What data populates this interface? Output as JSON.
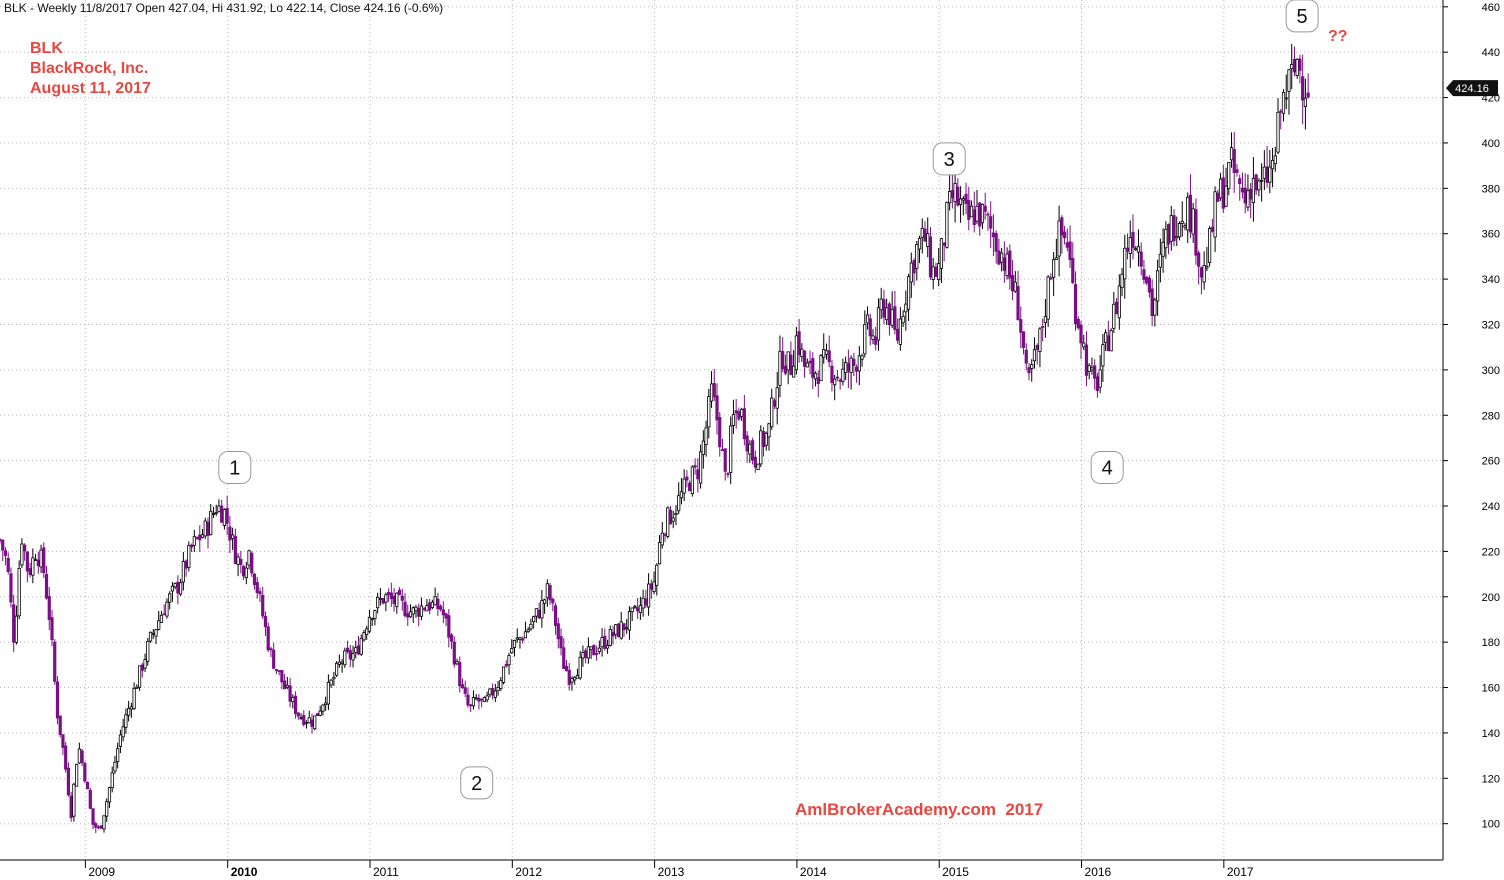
{
  "header": {
    "text": "BLK - Weekly 11/8/2017 Open 427.04, Hi 431.92, Lo 422.14, Close 424.16 (-0.6%)"
  },
  "title": {
    "ticker": "BLK",
    "company": "BlackRock, Inc.",
    "date": "August 11, 2017"
  },
  "watermark": "AmlBrokerAcademy.com  2017",
  "question_label": "??",
  "last_price_label": "424.16",
  "colors": {
    "up": "#000000",
    "down": "#7b0f86",
    "grid": "#b8b8b8",
    "accent": "#e8473f"
  },
  "chart_data": {
    "type": "candlestick",
    "ylim": [
      84,
      463
    ],
    "y_ticks": [
      100,
      120,
      140,
      160,
      180,
      200,
      220,
      240,
      260,
      280,
      300,
      320,
      340,
      360,
      380,
      400,
      420,
      440,
      460
    ],
    "x_ticks": [
      {
        "label": "2009",
        "x": 2009.0
      },
      {
        "label": "2010",
        "x": 2010.0
      },
      {
        "label": "2011",
        "x": 2011.0
      },
      {
        "label": "2012",
        "x": 2012.0
      },
      {
        "label": "2013",
        "x": 2013.0
      },
      {
        "label": "2014",
        "x": 2014.0
      },
      {
        "label": "2015",
        "x": 2015.0
      },
      {
        "label": "2016",
        "x": 2016.0
      },
      {
        "label": "2017",
        "x": 2017.0
      }
    ],
    "x_range": [
      2008.4,
      2018.54
    ],
    "close_path": [
      [
        2008.4,
        225
      ],
      [
        2008.45,
        215
      ],
      [
        2008.5,
        180
      ],
      [
        2008.55,
        228
      ],
      [
        2008.6,
        210
      ],
      [
        2008.65,
        220
      ],
      [
        2008.7,
        215
      ],
      [
        2008.75,
        190
      ],
      [
        2008.8,
        150
      ],
      [
        2008.85,
        130
      ],
      [
        2008.9,
        105
      ],
      [
        2008.95,
        135
      ],
      [
        2009.0,
        120
      ],
      [
        2009.05,
        100
      ],
      [
        2009.1,
        97
      ],
      [
        2009.15,
        110
      ],
      [
        2009.2,
        125
      ],
      [
        2009.25,
        140
      ],
      [
        2009.35,
        160
      ],
      [
        2009.45,
        180
      ],
      [
        2009.55,
        195
      ],
      [
        2009.65,
        205
      ],
      [
        2009.75,
        222
      ],
      [
        2009.85,
        230
      ],
      [
        2009.92,
        240
      ],
      [
        2009.98,
        237
      ],
      [
        2010.05,
        220
      ],
      [
        2010.1,
        212
      ],
      [
        2010.15,
        220
      ],
      [
        2010.22,
        200
      ],
      [
        2010.3,
        175
      ],
      [
        2010.4,
        160
      ],
      [
        2010.5,
        148
      ],
      [
        2010.6,
        145
      ],
      [
        2010.7,
        158
      ],
      [
        2010.8,
        172
      ],
      [
        2010.9,
        175
      ],
      [
        2011.0,
        193
      ],
      [
        2011.1,
        200
      ],
      [
        2011.2,
        197
      ],
      [
        2011.3,
        193
      ],
      [
        2011.4,
        197
      ],
      [
        2011.5,
        195
      ],
      [
        2011.55,
        185
      ],
      [
        2011.6,
        172
      ],
      [
        2011.65,
        158
      ],
      [
        2011.7,
        150
      ],
      [
        2011.75,
        155
      ],
      [
        2011.8,
        152
      ],
      [
        2011.9,
        162
      ],
      [
        2012.0,
        178
      ],
      [
        2012.1,
        185
      ],
      [
        2012.2,
        195
      ],
      [
        2012.25,
        203
      ],
      [
        2012.3,
        190
      ],
      [
        2012.35,
        172
      ],
      [
        2012.4,
        165
      ],
      [
        2012.5,
        172
      ],
      [
        2012.6,
        178
      ],
      [
        2012.7,
        183
      ],
      [
        2012.8,
        188
      ],
      [
        2012.9,
        195
      ],
      [
        2013.0,
        207
      ],
      [
        2013.05,
        230
      ],
      [
        2013.15,
        240
      ],
      [
        2013.25,
        252
      ],
      [
        2013.3,
        255
      ],
      [
        2013.35,
        270
      ],
      [
        2013.4,
        290
      ],
      [
        2013.45,
        275
      ],
      [
        2013.5,
        250
      ],
      [
        2013.55,
        278
      ],
      [
        2013.6,
        283
      ],
      [
        2013.65,
        270
      ],
      [
        2013.7,
        260
      ],
      [
        2013.75,
        268
      ],
      [
        2013.8,
        272
      ],
      [
        2013.85,
        293
      ],
      [
        2013.9,
        307
      ],
      [
        2013.95,
        300
      ],
      [
        2014.0,
        315
      ],
      [
        2014.05,
        302
      ],
      [
        2014.1,
        298
      ],
      [
        2014.2,
        303
      ],
      [
        2014.3,
        297
      ],
      [
        2014.4,
        302
      ],
      [
        2014.5,
        318
      ],
      [
        2014.55,
        312
      ],
      [
        2014.6,
        330
      ],
      [
        2014.65,
        325
      ],
      [
        2014.7,
        312
      ],
      [
        2014.75,
        330
      ],
      [
        2014.8,
        345
      ],
      [
        2014.85,
        355
      ],
      [
        2014.9,
        358
      ],
      [
        2014.95,
        343
      ],
      [
        2015.0,
        345
      ],
      [
        2015.05,
        365
      ],
      [
        2015.1,
        378
      ],
      [
        2015.15,
        372
      ],
      [
        2015.2,
        365
      ],
      [
        2015.25,
        370
      ],
      [
        2015.3,
        368
      ],
      [
        2015.35,
        363
      ],
      [
        2015.45,
        350
      ],
      [
        2015.55,
        330
      ],
      [
        2015.6,
        305
      ],
      [
        2015.62,
        290
      ],
      [
        2015.65,
        300
      ],
      [
        2015.7,
        310
      ],
      [
        2015.75,
        330
      ],
      [
        2015.8,
        352
      ],
      [
        2015.85,
        360
      ],
      [
        2015.9,
        357
      ],
      [
        2015.95,
        330
      ],
      [
        2016.0,
        315
      ],
      [
        2016.05,
        298
      ],
      [
        2016.1,
        292
      ],
      [
        2016.15,
        305
      ],
      [
        2016.2,
        318
      ],
      [
        2016.25,
        330
      ],
      [
        2016.3,
        350
      ],
      [
        2016.35,
        362
      ],
      [
        2016.4,
        355
      ],
      [
        2016.45,
        345
      ],
      [
        2016.5,
        325
      ],
      [
        2016.55,
        345
      ],
      [
        2016.6,
        360
      ],
      [
        2016.7,
        370
      ],
      [
        2016.75,
        372
      ],
      [
        2016.8,
        360
      ],
      [
        2016.85,
        340
      ],
      [
        2016.9,
        355
      ],
      [
        2016.95,
        375
      ],
      [
        2017.0,
        380
      ],
      [
        2017.05,
        390
      ],
      [
        2017.1,
        382
      ],
      [
        2017.15,
        375
      ],
      [
        2017.2,
        385
      ],
      [
        2017.25,
        378
      ],
      [
        2017.3,
        385
      ],
      [
        2017.35,
        390
      ],
      [
        2017.4,
        415
      ],
      [
        2017.45,
        425
      ],
      [
        2017.5,
        432
      ],
      [
        2017.52,
        438
      ],
      [
        2017.55,
        428
      ],
      [
        2017.6,
        424.16
      ]
    ],
    "wave_labels": [
      {
        "label": "1",
        "x": 2010.05,
        "y": 257
      },
      {
        "label": "2",
        "x": 2011.75,
        "y": 118
      },
      {
        "label": "3",
        "x": 2015.07,
        "y": 393
      },
      {
        "label": "4",
        "x": 2016.18,
        "y": 257
      },
      {
        "label": "5",
        "x": 2017.55,
        "y": 456
      }
    ],
    "last_close": 424.16
  }
}
